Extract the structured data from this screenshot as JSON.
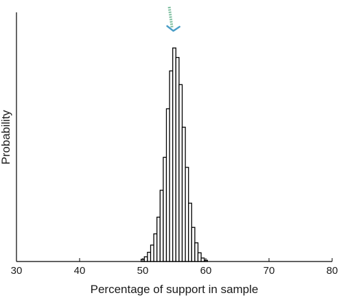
{
  "chart_data": {
    "type": "bar",
    "title": "",
    "xlabel": "Percentage of support in sample",
    "ylabel": "Probability",
    "xlim": [
      30,
      80
    ],
    "ylim": [
      0,
      0.1
    ],
    "xticks": [
      "30",
      "40",
      "50",
      "60",
      "70",
      "80"
    ],
    "yticks_shown": false,
    "grid": false,
    "legend": "none",
    "bin_width": 0.5,
    "bins_x": [
      50.0,
      50.5,
      51.0,
      51.5,
      52.0,
      52.5,
      53.0,
      53.5,
      54.0,
      54.5,
      55.0,
      55.5,
      56.0,
      56.5,
      57.0,
      57.5,
      58.0,
      58.5,
      59.0,
      59.5,
      60.0
    ],
    "values": [
      0.0009,
      0.0019,
      0.0037,
      0.0066,
      0.0111,
      0.0178,
      0.0286,
      0.0418,
      0.0613,
      0.0765,
      0.0857,
      0.0819,
      0.071,
      0.0539,
      0.0378,
      0.0234,
      0.0137,
      0.0075,
      0.0035,
      0.0014,
      0.0005
    ],
    "bar_color": "#ffffff",
    "bar_edge_color": "#000000",
    "annotation": {
      "type": "arrow",
      "points_to_x": 55.5,
      "color_head": "#4a9ec7",
      "color_shaft": "#7fbfa0"
    }
  }
}
